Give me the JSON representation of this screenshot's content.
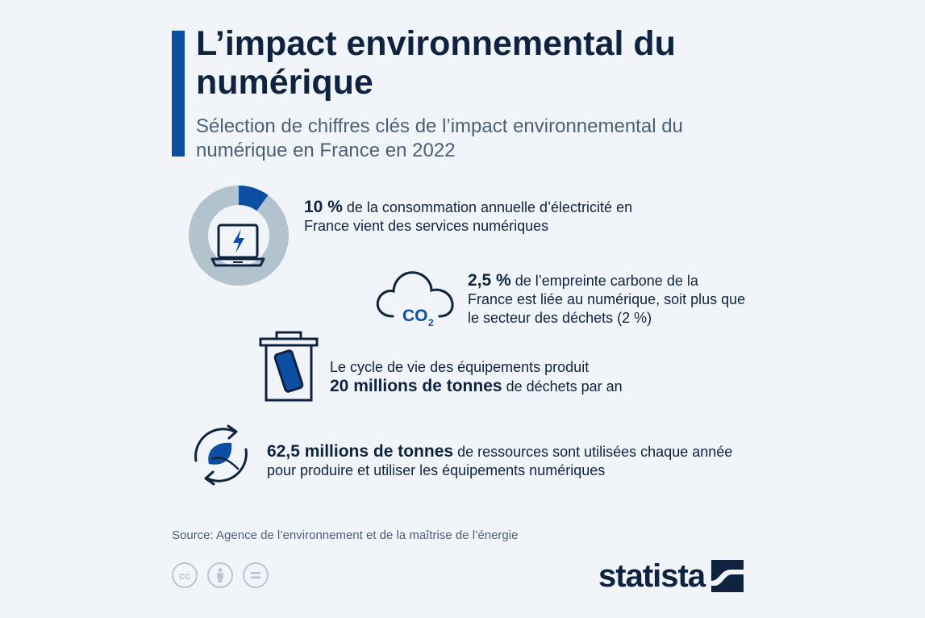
{
  "header": {
    "title": "L’impact environnemental du numérique",
    "subtitle": "Sélection de chiffres clés de l’impact environnemental du numérique en France en 2022"
  },
  "stats": [
    {
      "bold": "10 %",
      "text": " de la consommation annuelle d’électricité en France vient des services numériques",
      "icon": "laptop-lightning-icon",
      "share": 0.1
    },
    {
      "bold": "2,5 %",
      "text": " de l’empreinte carbone de la France est liée au numérique, soit plus que le secteur des déchets (2 %)",
      "icon": "co2-cloud-icon",
      "icon_text": "CO",
      "icon_sub": "2"
    },
    {
      "pre": "Le cycle de vie des équipements produit",
      "bold": "20 millions de tonnes",
      "text": " de déchets par an",
      "icon": "phone-trash-bin-icon"
    },
    {
      "bold": "62,5 millions de tonnes",
      "text": " de ressources sont utilisées chaque année pour produire et utiliser les équipements numériques",
      "icon": "leaf-cycle-icon"
    }
  ],
  "footer": {
    "source": "Source: Agence de l’environnement et de la maîtrise de l’énergie",
    "license_icons": [
      "cc-icon",
      "attribution-icon",
      "no-derivatives-icon"
    ],
    "brand": "statista"
  },
  "colors": {
    "accent": "#0b4ea2",
    "navy": "#0f2340",
    "muted": "#4a5f78",
    "donut_bg": "#b3c3ce",
    "background": "#f1f5f9"
  }
}
